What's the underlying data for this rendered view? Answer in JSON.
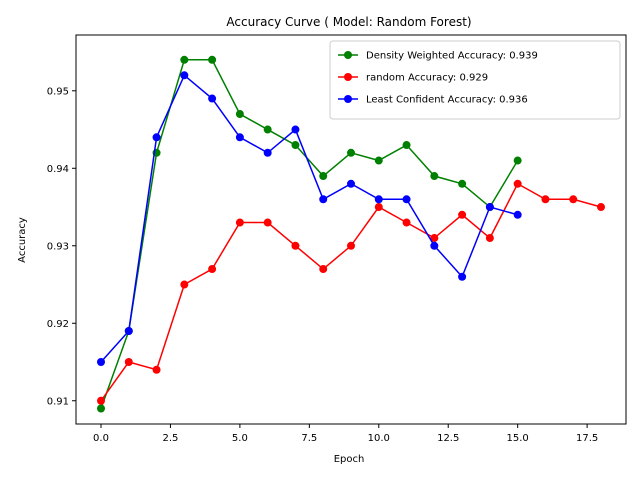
{
  "chart_data": {
    "type": "line",
    "title": "Accuracy Curve ( Model: Random Forest)",
    "xlabel": "Epoch",
    "ylabel": "Accuracy",
    "xlim": [
      -0.9,
      18.9
    ],
    "ylim": [
      0.907,
      0.9572
    ],
    "xticks": [
      0.0,
      2.5,
      5.0,
      7.5,
      10.0,
      12.5,
      15.0,
      17.5
    ],
    "xtick_labels": [
      "0.0",
      "2.5",
      "5.0",
      "7.5",
      "10.0",
      "12.5",
      "15.0",
      "17.5"
    ],
    "yticks": [
      0.91,
      0.92,
      0.93,
      0.94,
      0.95
    ],
    "ytick_labels": [
      "0.91",
      "0.92",
      "0.93",
      "0.94",
      "0.95"
    ],
    "grid": false,
    "legend_position": "top-right",
    "series": [
      {
        "name": "Density Weighted Accuracy: 0.939",
        "color": "#008000",
        "marker": "circle",
        "x": [
          0,
          1,
          2,
          3,
          4,
          5,
          6,
          7,
          8,
          9,
          10,
          11,
          12,
          13,
          14,
          15
        ],
        "y": [
          0.909,
          0.919,
          0.942,
          0.954,
          0.954,
          0.947,
          0.945,
          0.943,
          0.939,
          0.942,
          0.941,
          0.943,
          0.939,
          0.938,
          0.935,
          0.941
        ]
      },
      {
        "name": "random Accuracy: 0.929",
        "color": "#ff0000",
        "marker": "circle",
        "x": [
          0,
          1,
          2,
          3,
          4,
          5,
          6,
          7,
          8,
          9,
          10,
          11,
          12,
          13,
          14,
          15,
          16,
          17,
          18
        ],
        "y": [
          0.91,
          0.915,
          0.914,
          0.925,
          0.927,
          0.933,
          0.933,
          0.93,
          0.927,
          0.93,
          0.935,
          0.933,
          0.931,
          0.934,
          0.931,
          0.938,
          0.936,
          0.936,
          0.935
        ]
      },
      {
        "name": "Least Confident Accuracy: 0.936",
        "color": "#0000ff",
        "marker": "circle",
        "x": [
          0,
          1,
          2,
          3,
          4,
          5,
          6,
          7,
          8,
          9,
          10,
          11,
          12,
          13,
          14,
          15
        ],
        "y": [
          0.915,
          0.919,
          0.944,
          0.952,
          0.949,
          0.944,
          0.942,
          0.945,
          0.936,
          0.938,
          0.936,
          0.936,
          0.93,
          0.926,
          0.935,
          0.934
        ]
      }
    ]
  }
}
